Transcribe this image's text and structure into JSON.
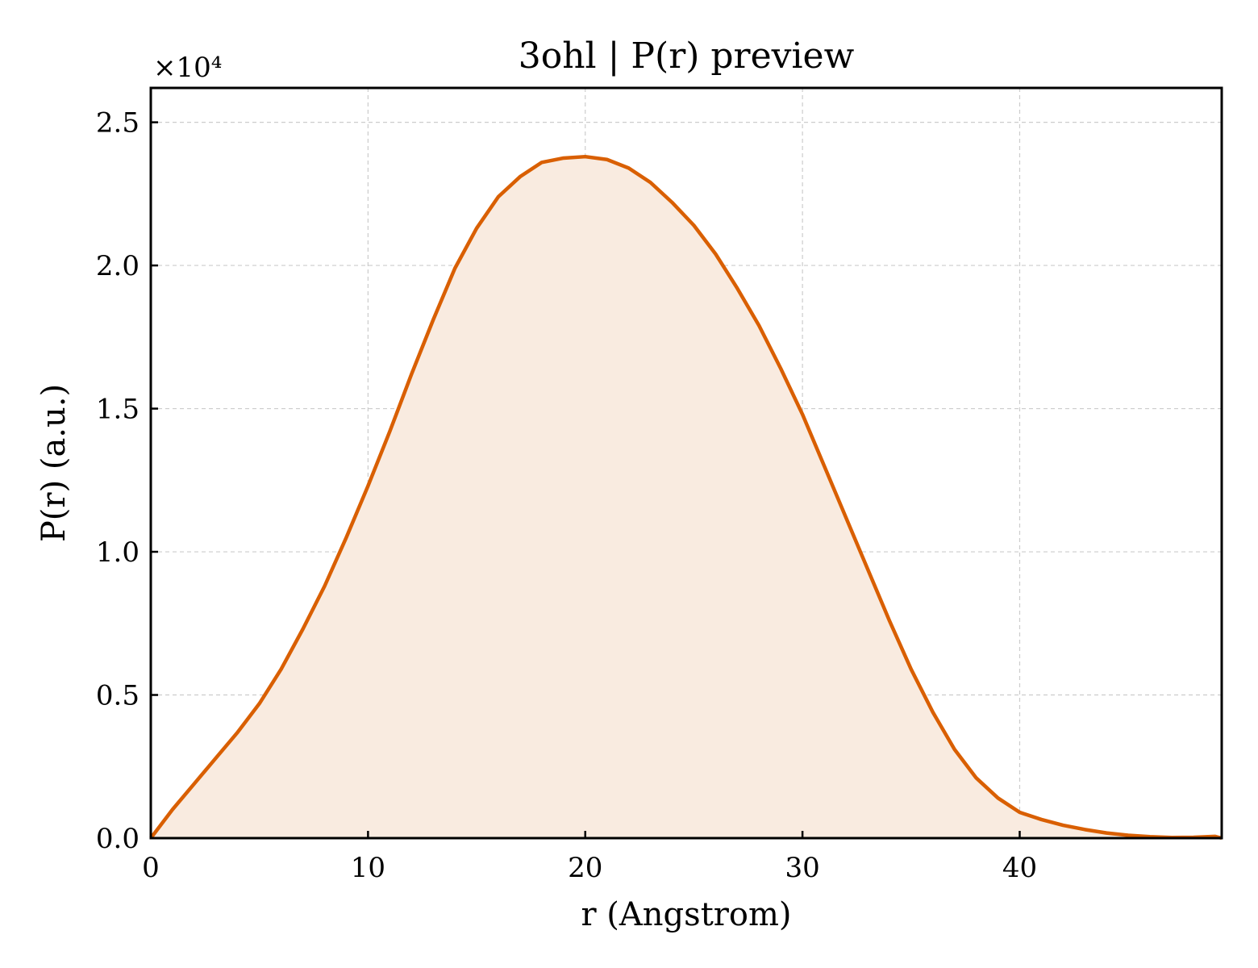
{
  "chart_data": {
    "type": "area",
    "title": "3ohl | P(r) preview",
    "xlabel": "r (Angstrom)",
    "ylabel": "P(r) (a.u.)",
    "y_offset_label": "×10⁴",
    "xlim": [
      0,
      49.3
    ],
    "ylim": [
      0,
      2.62
    ],
    "xticks": [
      0,
      10,
      20,
      30,
      40
    ],
    "xtick_labels": [
      "0",
      "10",
      "20",
      "30",
      "40"
    ],
    "yticks": [
      0.0,
      0.5,
      1.0,
      1.5,
      2.0,
      2.5
    ],
    "ytick_labels": [
      "0.0",
      "0.5",
      "1.0",
      "1.5",
      "2.0",
      "2.5"
    ],
    "grid": true,
    "line_color": "#d95f02",
    "fill_color": "#f9ebe0",
    "series": [
      {
        "x": [
          0,
          1,
          2,
          3,
          4,
          5,
          6,
          7,
          8,
          9,
          10,
          11,
          12,
          13,
          14,
          15,
          16,
          17,
          18,
          19,
          20,
          21,
          22,
          23,
          24,
          25,
          26,
          27,
          28,
          29,
          30,
          31,
          32,
          33,
          34,
          35,
          36,
          37,
          38,
          39,
          40,
          41,
          42,
          43,
          44,
          45,
          46,
          47,
          48,
          49,
          49.3
        ],
        "y": [
          0.0,
          0.1,
          0.19,
          0.28,
          0.37,
          0.47,
          0.59,
          0.73,
          0.88,
          1.05,
          1.23,
          1.42,
          1.62,
          1.81,
          1.99,
          2.13,
          2.24,
          2.31,
          2.36,
          2.375,
          2.38,
          2.37,
          2.34,
          2.29,
          2.22,
          2.14,
          2.04,
          1.92,
          1.79,
          1.64,
          1.48,
          1.3,
          1.12,
          0.94,
          0.76,
          0.59,
          0.44,
          0.31,
          0.21,
          0.14,
          0.09,
          0.065,
          0.045,
          0.03,
          0.018,
          0.01,
          0.005,
          0.002,
          0.003,
          0.006,
          0.0
        ]
      }
    ]
  }
}
